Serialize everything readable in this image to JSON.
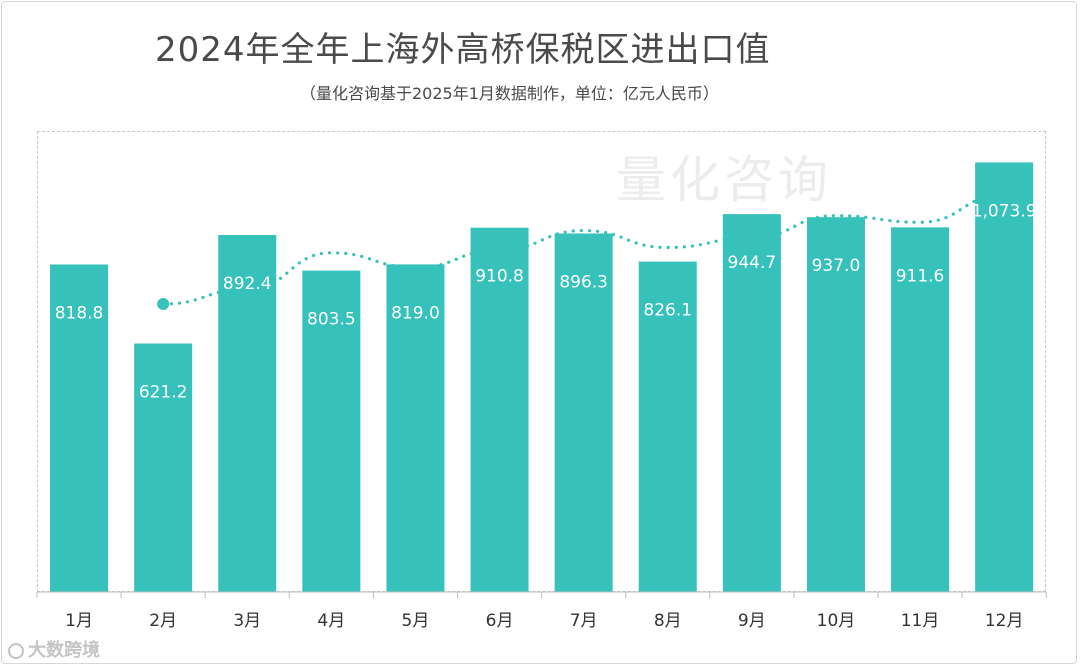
{
  "chart_data": {
    "type": "bar",
    "title": "2024年全年上海外高桥保税区进出口值",
    "subtitle": "（量化咨询基于2025年1月数据制作，单位：亿元人民币）",
    "categories": [
      "1月",
      "2月",
      "3月",
      "4月",
      "5月",
      "6月",
      "7月",
      "8月",
      "9月",
      "10月",
      "11月",
      "12月"
    ],
    "values": [
      818.8,
      621.2,
      892.4,
      803.5,
      819.0,
      910.8,
      896.3,
      826.1,
      944.7,
      937.0,
      911.6,
      1073.9
    ],
    "value_labels": [
      "818.8",
      "621.2",
      "892.4",
      "803.5",
      "819.0",
      "910.8",
      "896.3",
      "826.1",
      "944.7",
      "937.0",
      "911.6",
      "1,073.9"
    ],
    "trend_series": {
      "style": "dotted",
      "categories": [
        "2月",
        "3月",
        "4月",
        "5月",
        "6月",
        "7月",
        "8月",
        "9月",
        "10月",
        "11月",
        "12月"
      ],
      "values": [
        720.0,
        756.8,
        847.9,
        811.3,
        855.0,
        903.6,
        861.2,
        885.4,
        940.9,
        924.3,
        992.8
      ]
    },
    "ylim": [
      0,
      1150
    ],
    "xlabel": "",
    "ylabel": "",
    "grid": false,
    "bar_color": "#36c1bb",
    "trend_color": "#36c1bb"
  },
  "watermark": "量化咨询",
  "logo": "大数跨境"
}
